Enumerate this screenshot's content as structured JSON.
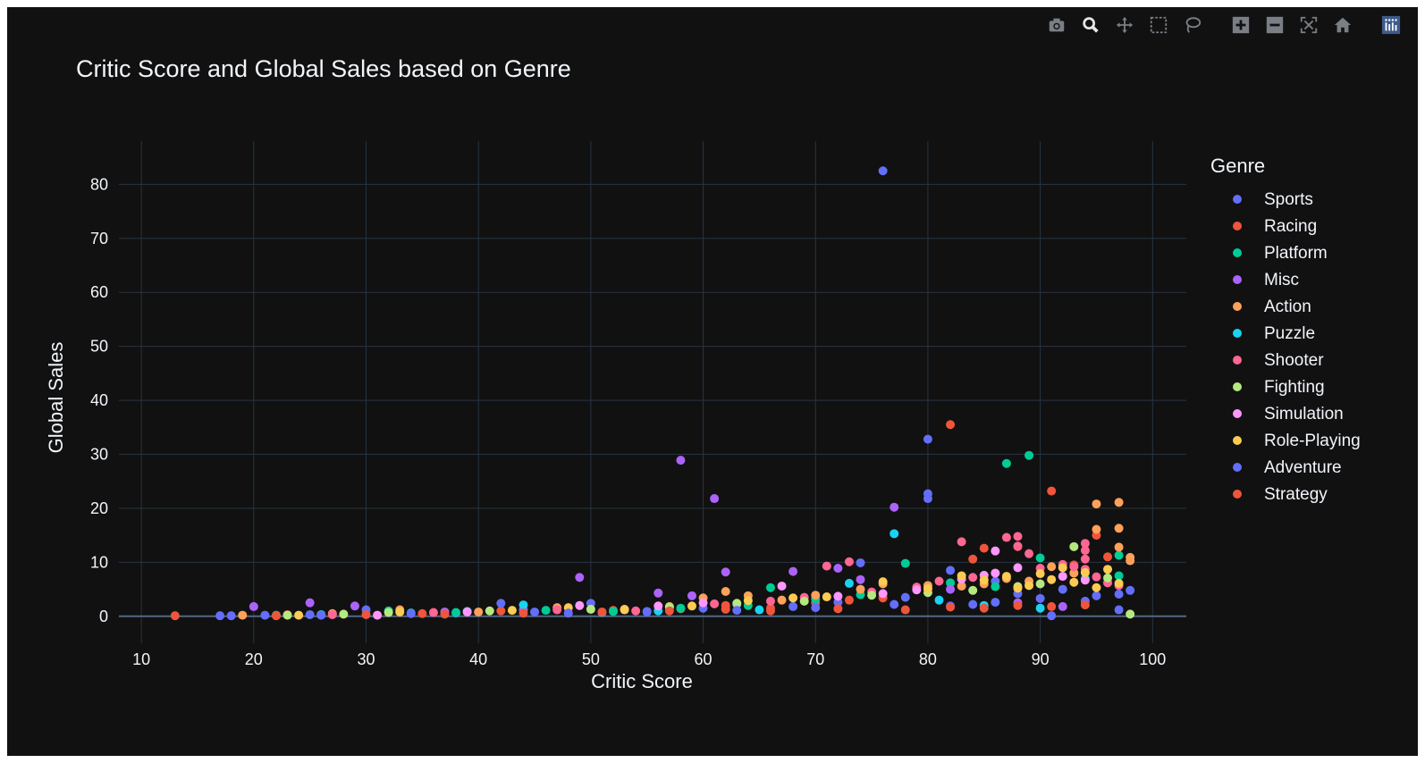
{
  "toolbar": {
    "buttons": [
      {
        "name": "camera-icon",
        "title": "Download plot as a png"
      },
      {
        "name": "zoom-icon",
        "title": "Zoom"
      },
      {
        "name": "pan-icon",
        "title": "Pan"
      },
      {
        "name": "box-select-icon",
        "title": "Box Select"
      },
      {
        "name": "lasso-select-icon",
        "title": "Lasso Select"
      },
      {
        "name": "zoom-in-icon",
        "title": "Zoom in"
      },
      {
        "name": "zoom-out-icon",
        "title": "Zoom out"
      },
      {
        "name": "autoscale-icon",
        "title": "Autoscale"
      },
      {
        "name": "reset-axes-icon",
        "title": "Reset axes"
      },
      {
        "name": "plotly-logo-icon",
        "title": "Produced with Plotly"
      }
    ],
    "active": "zoom-icon"
  },
  "chart_data": {
    "type": "scatter",
    "title": "Critic Score and Global Sales based on Genre",
    "xlabel": "Critic Score",
    "ylabel": "Global Sales",
    "xlim": [
      8,
      103
    ],
    "ylim": [
      -5,
      88
    ],
    "xticks": [
      10,
      20,
      30,
      40,
      50,
      60,
      70,
      80,
      90,
      100
    ],
    "yticks": [
      0,
      10,
      20,
      30,
      40,
      50,
      60,
      70,
      80
    ],
    "grid": true,
    "legend": {
      "title": "Genre",
      "position": "right"
    },
    "colors": {
      "background": "#111111",
      "grid": "#283442",
      "text": "#f2f5fa"
    },
    "series": [
      {
        "name": "Sports",
        "color": "#636efa",
        "points": [
          [
            17,
            0.1
          ],
          [
            21,
            0.2
          ],
          [
            25,
            0.3
          ],
          [
            30,
            1.2
          ],
          [
            38,
            0.6
          ],
          [
            45,
            0.8
          ],
          [
            50,
            2.4
          ],
          [
            55,
            0.9
          ],
          [
            60,
            1.5
          ],
          [
            63,
            2.2
          ],
          [
            68,
            1.8
          ],
          [
            72,
            2.6
          ],
          [
            74,
            9.9
          ],
          [
            76,
            82.5
          ],
          [
            78,
            3.5
          ],
          [
            80,
            32.8
          ],
          [
            80,
            22.7
          ],
          [
            80,
            21.8
          ],
          [
            82,
            8.5
          ],
          [
            84,
            2.2
          ],
          [
            86,
            6.5
          ],
          [
            88,
            4.2
          ],
          [
            90,
            3.3
          ],
          [
            92,
            5.0
          ],
          [
            95,
            3.8
          ],
          [
            97,
            4.1
          ],
          [
            98,
            4.8
          ]
        ]
      },
      {
        "name": "Racing",
        "color": "#EF553B",
        "points": [
          [
            13,
            0.1
          ],
          [
            23,
            0.3
          ],
          [
            35,
            0.5
          ],
          [
            42,
            1.0
          ],
          [
            48,
            0.6
          ],
          [
            52,
            1.1
          ],
          [
            58,
            1.4
          ],
          [
            62,
            2.0
          ],
          [
            66,
            1.5
          ],
          [
            70,
            2.5
          ],
          [
            73,
            3.0
          ],
          [
            76,
            3.4
          ],
          [
            80,
            5.2
          ],
          [
            82,
            35.5
          ],
          [
            84,
            10.6
          ],
          [
            85,
            12.6
          ],
          [
            88,
            12.9
          ],
          [
            91,
            23.2
          ],
          [
            93,
            9.5
          ],
          [
            95,
            15.0
          ],
          [
            96,
            11.0
          ]
        ]
      },
      {
        "name": "Platform",
        "color": "#00cc96",
        "points": [
          [
            22,
            0.2
          ],
          [
            32,
            1.0
          ],
          [
            38,
            0.7
          ],
          [
            46,
            1.1
          ],
          [
            52,
            0.9
          ],
          [
            58,
            1.5
          ],
          [
            64,
            2.0
          ],
          [
            66,
            5.3
          ],
          [
            70,
            3.2
          ],
          [
            74,
            4.0
          ],
          [
            78,
            9.8
          ],
          [
            82,
            6.2
          ],
          [
            86,
            5.5
          ],
          [
            87,
            28.3
          ],
          [
            89,
            29.8
          ],
          [
            90,
            10.8
          ],
          [
            94,
            7.0
          ],
          [
            97,
            11.3
          ],
          [
            97,
            7.5
          ]
        ]
      },
      {
        "name": "Misc",
        "color": "#ab63fa",
        "points": [
          [
            20,
            1.8
          ],
          [
            25,
            2.5
          ],
          [
            29,
            1.9
          ],
          [
            37,
            0.8
          ],
          [
            44,
            1.2
          ],
          [
            49,
            7.2
          ],
          [
            56,
            4.3
          ],
          [
            58,
            28.9
          ],
          [
            59,
            3.8
          ],
          [
            61,
            21.8
          ],
          [
            62,
            8.2
          ],
          [
            68,
            8.3
          ],
          [
            72,
            8.9
          ],
          [
            74,
            6.8
          ],
          [
            77,
            20.2
          ],
          [
            82,
            5.0
          ],
          [
            88,
            2.5
          ],
          [
            92,
            1.8
          ]
        ]
      },
      {
        "name": "Action",
        "color": "#FFA15A",
        "points": [
          [
            19,
            0.2
          ],
          [
            27,
            0.5
          ],
          [
            33,
            1.2
          ],
          [
            40,
            0.8
          ],
          [
            47,
            1.6
          ],
          [
            53,
            1.3
          ],
          [
            57,
            1.8
          ],
          [
            60,
            3.4
          ],
          [
            62,
            4.6
          ],
          [
            64,
            3.8
          ],
          [
            67,
            3.0
          ],
          [
            70,
            3.9
          ],
          [
            74,
            5.0
          ],
          [
            76,
            6.0
          ],
          [
            80,
            5.7
          ],
          [
            83,
            5.6
          ],
          [
            85,
            6.0
          ],
          [
            87,
            7.0
          ],
          [
            89,
            6.5
          ],
          [
            91,
            9.2
          ],
          [
            93,
            8.0
          ],
          [
            95,
            20.8
          ],
          [
            95,
            16.1
          ],
          [
            97,
            21.1
          ],
          [
            97,
            16.3
          ],
          [
            97,
            12.8
          ],
          [
            98,
            10.9
          ],
          [
            98,
            10.3
          ]
        ]
      },
      {
        "name": "Puzzle",
        "color": "#19d3f3",
        "points": [
          [
            26,
            0.3
          ],
          [
            34,
            0.6
          ],
          [
            39,
            0.9
          ],
          [
            44,
            2.1
          ],
          [
            51,
            0.7
          ],
          [
            56,
            1.0
          ],
          [
            65,
            1.2
          ],
          [
            73,
            6.1
          ],
          [
            77,
            15.3
          ],
          [
            81,
            3.0
          ],
          [
            85,
            2.0
          ],
          [
            90,
            1.5
          ]
        ]
      },
      {
        "name": "Shooter",
        "color": "#FF6692",
        "points": [
          [
            27,
            0.3
          ],
          [
            36,
            0.7
          ],
          [
            47,
            1.2
          ],
          [
            54,
            1.0
          ],
          [
            61,
            2.3
          ],
          [
            66,
            2.8
          ],
          [
            69,
            3.5
          ],
          [
            71,
            9.3
          ],
          [
            73,
            10.1
          ],
          [
            75,
            4.5
          ],
          [
            79,
            5.4
          ],
          [
            81,
            6.5
          ],
          [
            83,
            13.8
          ],
          [
            84,
            7.2
          ],
          [
            87,
            14.6
          ],
          [
            88,
            14.8
          ],
          [
            88,
            13.0
          ],
          [
            89,
            11.6
          ],
          [
            90,
            8.9
          ],
          [
            92,
            9.6
          ],
          [
            93,
            9.2
          ],
          [
            94,
            13.5
          ],
          [
            94,
            12.2
          ],
          [
            94,
            10.6
          ],
          [
            94,
            8.7
          ],
          [
            95,
            7.3
          ],
          [
            96,
            6.2
          ],
          [
            97,
            5.7
          ]
        ]
      },
      {
        "name": "Fighting",
        "color": "#B6E880",
        "points": [
          [
            23,
            0.2
          ],
          [
            28,
            0.4
          ],
          [
            32,
            0.7
          ],
          [
            41,
            1.0
          ],
          [
            50,
            1.3
          ],
          [
            57,
            1.7
          ],
          [
            63,
            2.4
          ],
          [
            69,
            2.8
          ],
          [
            75,
            3.9
          ],
          [
            80,
            4.4
          ],
          [
            84,
            4.8
          ],
          [
            88,
            5.5
          ],
          [
            90,
            6.0
          ],
          [
            93,
            12.9
          ],
          [
            96,
            7.1
          ],
          [
            98,
            0.4
          ]
        ]
      },
      {
        "name": "Simulation",
        "color": "#FF97FF",
        "points": [
          [
            31,
            0.2
          ],
          [
            39,
            0.8
          ],
          [
            49,
            2.0
          ],
          [
            56,
            1.9
          ],
          [
            60,
            2.5
          ],
          [
            67,
            5.6
          ],
          [
            72,
            3.7
          ],
          [
            76,
            4.2
          ],
          [
            79,
            4.9
          ],
          [
            83,
            6.9
          ],
          [
            85,
            7.6
          ],
          [
            86,
            8.0
          ],
          [
            86,
            12.1
          ],
          [
            88,
            9.0
          ],
          [
            92,
            7.4
          ],
          [
            94,
            6.7
          ]
        ]
      },
      {
        "name": "Role-Playing",
        "color": "#FECB52",
        "points": [
          [
            24,
            0.2
          ],
          [
            33,
            0.8
          ],
          [
            43,
            1.1
          ],
          [
            48,
            1.6
          ],
          [
            53,
            1.2
          ],
          [
            59,
            1.9
          ],
          [
            64,
            2.9
          ],
          [
            68,
            3.4
          ],
          [
            71,
            3.6
          ],
          [
            76,
            6.4
          ],
          [
            80,
            5.1
          ],
          [
            83,
            7.5
          ],
          [
            85,
            6.7
          ],
          [
            87,
            7.4
          ],
          [
            88,
            5.2
          ],
          [
            89,
            5.7
          ],
          [
            90,
            7.9
          ],
          [
            91,
            6.8
          ],
          [
            92,
            9.0
          ],
          [
            93,
            6.3
          ],
          [
            94,
            8.1
          ],
          [
            95,
            5.3
          ],
          [
            96,
            8.7
          ],
          [
            97,
            6.1
          ]
        ]
      },
      {
        "name": "Adventure",
        "color": "#636efa",
        "points": [
          [
            18,
            0.1
          ],
          [
            26,
            0.2
          ],
          [
            34,
            0.5
          ],
          [
            42,
            2.4
          ],
          [
            48,
            0.6
          ],
          [
            55,
            0.8
          ],
          [
            63,
            1.1
          ],
          [
            70,
            1.6
          ],
          [
            77,
            2.2
          ],
          [
            82,
            1.9
          ],
          [
            86,
            2.6
          ],
          [
            91,
            0.1
          ],
          [
            94,
            2.8
          ],
          [
            97,
            1.2
          ]
        ]
      },
      {
        "name": "Strategy",
        "color": "#EF553B",
        "points": [
          [
            22,
            0.1
          ],
          [
            30,
            0.3
          ],
          [
            37,
            0.4
          ],
          [
            44,
            0.6
          ],
          [
            51,
            0.8
          ],
          [
            57,
            1.0
          ],
          [
            62,
            1.3
          ],
          [
            66,
            1.0
          ],
          [
            72,
            1.4
          ],
          [
            78,
            1.2
          ],
          [
            82,
            1.7
          ],
          [
            85,
            1.5
          ],
          [
            88,
            2.0
          ],
          [
            91,
            1.8
          ],
          [
            94,
            2.1
          ]
        ]
      }
    ]
  }
}
